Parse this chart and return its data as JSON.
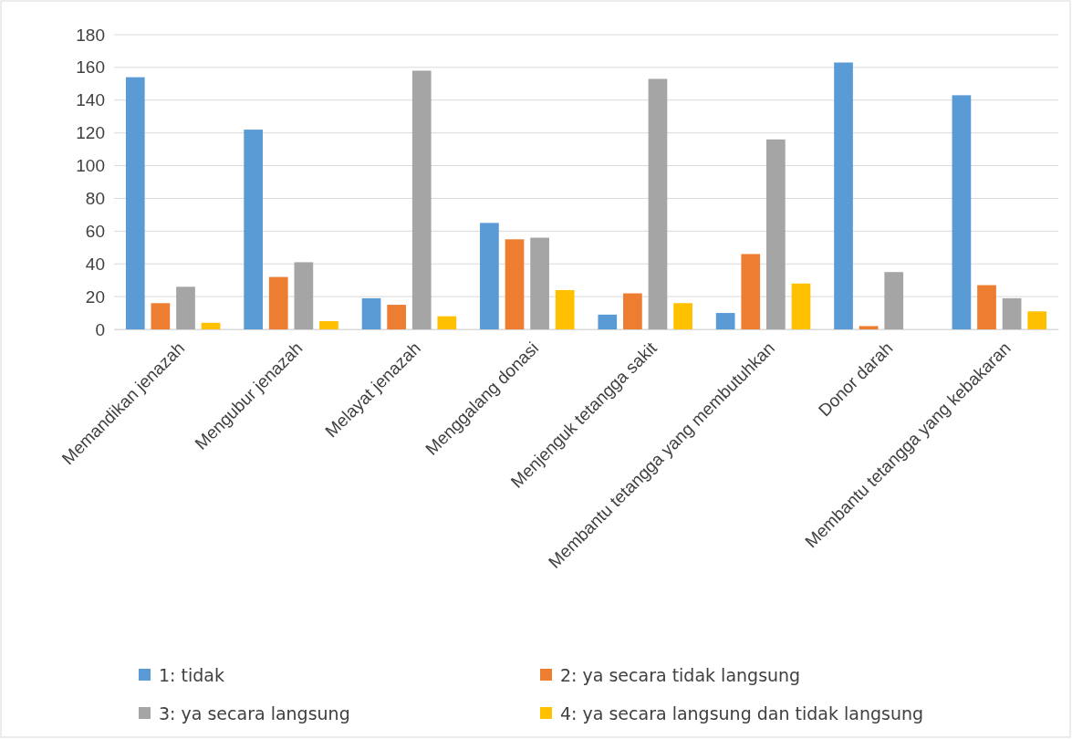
{
  "chart_data": {
    "type": "bar",
    "categories": [
      "Memandikan jenazah",
      "Mengubur jenazah",
      "Melayat jenazah",
      "Menggalang donasi",
      "Menjenguk tetangga sakit",
      "Membantu tetangga yang membutuhkan",
      "Donor darah",
      "Membantu tetangga yang kebakaran"
    ],
    "series": [
      {
        "name": "1: tidak",
        "color": "#5b9bd5",
        "values": [
          154,
          122,
          19,
          65,
          9,
          10,
          163,
          143
        ]
      },
      {
        "name": "2: ya secara tidak langsung",
        "color": "#ed7d31",
        "values": [
          16,
          32,
          15,
          55,
          22,
          46,
          2,
          27
        ]
      },
      {
        "name": "3: ya secara langsung",
        "color": "#a5a5a5",
        "values": [
          26,
          41,
          158,
          56,
          153,
          116,
          35,
          19
        ]
      },
      {
        "name": "4: ya secara langsung dan tidak langsung",
        "color": "#ffc000",
        "values": [
          4,
          5,
          8,
          24,
          16,
          28,
          0,
          11
        ]
      }
    ],
    "ylim": [
      0,
      180
    ],
    "yticks": [
      0,
      20,
      40,
      60,
      80,
      100,
      120,
      140,
      160,
      180
    ],
    "grid": "y",
    "legend": "bottom"
  }
}
